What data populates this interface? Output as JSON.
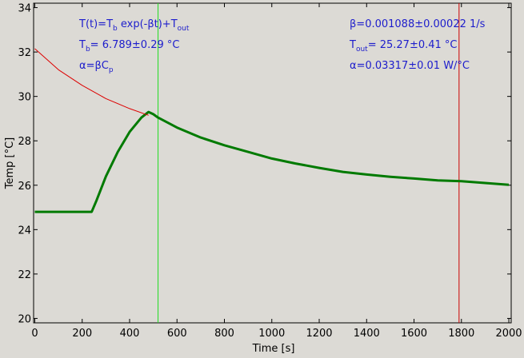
{
  "chart_data": {
    "type": "line",
    "xlabel": "Time [s]",
    "ylabel": "Temp [°C]",
    "xlim": [
      -5,
      2010
    ],
    "ylim": [
      19.8,
      34.2
    ],
    "x_ticks": [
      0,
      200,
      400,
      600,
      800,
      1000,
      1200,
      1400,
      1600,
      1800,
      2000
    ],
    "y_ticks": [
      20,
      22,
      24,
      26,
      28,
      30,
      32,
      34
    ],
    "grid": false,
    "colors": {
      "measured": "#007a00",
      "fit": "#dd0000",
      "marker_start": "#22dd22",
      "marker_end": "#cc0000",
      "annotation": "#1d1dcc"
    },
    "series": [
      {
        "x": [
          0,
          100,
          200,
          240,
          260,
          300,
          350,
          400,
          450,
          480,
          500,
          520,
          600,
          700,
          800,
          900,
          1000,
          1100,
          1200,
          1300,
          1400,
          1500,
          1600,
          1700,
          1800,
          1900,
          2000
        ],
        "values": [
          24.8,
          24.8,
          24.8,
          24.8,
          25.3,
          26.4,
          27.5,
          28.4,
          29.05,
          29.3,
          29.2,
          29.05,
          28.6,
          28.15,
          27.8,
          27.5,
          27.2,
          26.98,
          26.78,
          26.6,
          26.48,
          26.38,
          26.3,
          26.22,
          26.18,
          26.1,
          26.02
        ]
      },
      {
        "x": [
          0,
          100,
          200,
          300,
          400,
          480
        ],
        "values": [
          32.15,
          31.2,
          30.5,
          29.9,
          29.45,
          29.15
        ]
      }
    ],
    "vertical_markers": [
      520,
      1790
    ],
    "annotations_left": [
      {
        "parts": [
          {
            "t": "T(t)=T"
          },
          {
            "t": "b",
            "sub": true
          },
          {
            "t": " exp(-βt)+T"
          },
          {
            "t": "out",
            "sub": true
          }
        ]
      },
      {
        "parts": [
          {
            "t": "T"
          },
          {
            "t": "b",
            "sub": true
          },
          {
            "t": "= 6.789±0.29 °C"
          }
        ]
      },
      {
        "parts": [
          {
            "t": "α=βC"
          },
          {
            "t": "p",
            "sub": true
          }
        ]
      }
    ],
    "annotations_right": [
      {
        "parts": [
          {
            "t": "β=0.001088±0.00022 1/s"
          }
        ]
      },
      {
        "parts": [
          {
            "t": "T"
          },
          {
            "t": "out",
            "sub": true
          },
          {
            "t": "= 25.27±0.41 °C"
          }
        ]
      },
      {
        "parts": [
          {
            "t": "α=0.03317±0.01 W/°C"
          }
        ]
      }
    ]
  }
}
